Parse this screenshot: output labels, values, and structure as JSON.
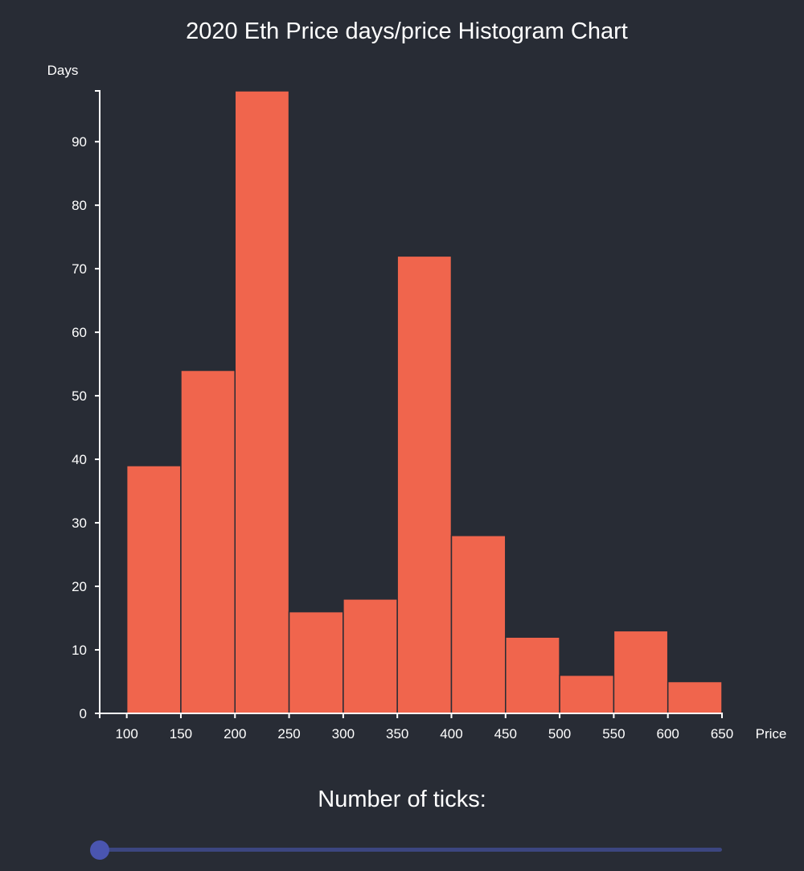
{
  "chart_data": {
    "type": "histogram",
    "title": "2020 Eth Price days/price Histogram Chart",
    "xlabel": "Price",
    "ylabel": "Days",
    "xlim": [
      75,
      650
    ],
    "ylim": [
      0,
      98
    ],
    "x_ticks": [
      100,
      150,
      200,
      250,
      300,
      350,
      400,
      450,
      500,
      550,
      600,
      650
    ],
    "y_ticks": [
      0,
      10,
      20,
      30,
      40,
      50,
      60,
      70,
      80,
      90
    ],
    "bins": [
      {
        "x0": 100,
        "x1": 150,
        "value": 39
      },
      {
        "x0": 150,
        "x1": 200,
        "value": 54
      },
      {
        "x0": 200,
        "x1": 250,
        "value": 98
      },
      {
        "x0": 250,
        "x1": 300,
        "value": 16
      },
      {
        "x0": 300,
        "x1": 350,
        "value": 18
      },
      {
        "x0": 350,
        "x1": 400,
        "value": 72
      },
      {
        "x0": 400,
        "x1": 450,
        "value": 28
      },
      {
        "x0": 450,
        "x1": 500,
        "value": 12
      },
      {
        "x0": 500,
        "x1": 550,
        "value": 6
      },
      {
        "x0": 550,
        "x1": 600,
        "value": 13
      },
      {
        "x0": 600,
        "x1": 650,
        "value": 5
      }
    ],
    "bar_color": "#f0654d"
  },
  "controls": {
    "slider_label": "Number of ticks:",
    "slider_value_fraction": 0
  },
  "colors": {
    "background": "#282c35",
    "slider_track": "#3c4680",
    "slider_thumb": "#4a55b0"
  }
}
